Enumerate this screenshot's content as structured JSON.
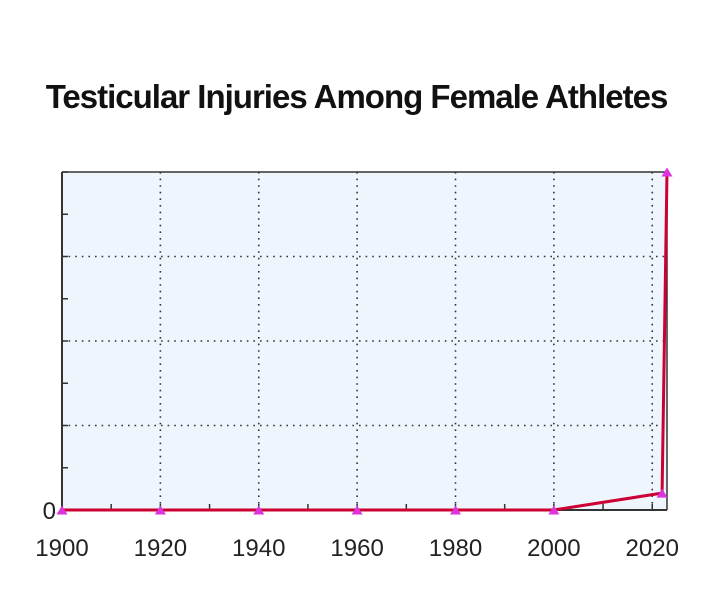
{
  "chart_data": {
    "type": "line",
    "title": "Testicular Injuries Among Female Athletes",
    "xlabel": "",
    "ylabel": "",
    "x_ticks": [
      1900,
      1920,
      1940,
      1960,
      1980,
      2000,
      2020
    ],
    "y_ticks": [
      0
    ],
    "xlim": [
      1900,
      2023
    ],
    "ylim": [
      0,
      8
    ],
    "grid": true,
    "legend": "none",
    "series": [
      {
        "x": [
          1900,
          1920,
          1940,
          1960,
          1980,
          2000,
          2022,
          2023
        ],
        "values": [
          0,
          0,
          0,
          0,
          0,
          0,
          0.4,
          8
        ],
        "color": "#cc0033",
        "marker_color": "#dd33dd"
      }
    ],
    "colors": {
      "plot_background": "#eef5fd",
      "grid": "#333333",
      "axis": "#333333"
    }
  }
}
